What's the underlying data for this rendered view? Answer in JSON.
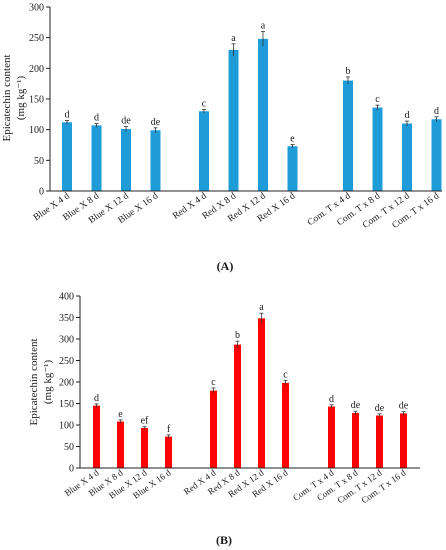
{
  "chart_data": [
    {
      "type": "bar",
      "panel_label": "(A)",
      "ylabel_line1": "Epicatechin content",
      "ylabel_line2": "(mg kg⁻¹)",
      "ylim": [
        0,
        300
      ],
      "yticks": [
        "0",
        "50",
        "100",
        "150",
        "200",
        "250",
        "300"
      ],
      "bar_color": "#1f9bd8",
      "grid": false,
      "groups": [
        {
          "categories": [
            "Blue X 4 d",
            "Blue X 8 d",
            "Blue X 12 d",
            "Blue X 16 d"
          ],
          "values": [
            112,
            107,
            101,
            99
          ],
          "errors": [
            3,
            3,
            4,
            4
          ],
          "letters": [
            "d",
            "d",
            "de",
            "de"
          ]
        },
        {
          "categories": [
            "Red X 4 d",
            "Red X 8 d",
            "Red X 12 d",
            "Red X  16 d"
          ],
          "values": [
            130,
            230,
            248,
            73
          ],
          "errors": [
            3,
            10,
            12,
            3
          ],
          "letters": [
            "c",
            "a",
            "a",
            "e"
          ]
        },
        {
          "categories": [
            "Com. T x 4 d",
            "Com. T x 8 d",
            "Com. T x 12 d",
            "Com. T x 16 d"
          ],
          "values": [
            180,
            136,
            110,
            117
          ],
          "errors": [
            6,
            4,
            4,
            4
          ],
          "letters": [
            "b",
            "c",
            "d",
            "d"
          ]
        }
      ]
    },
    {
      "type": "bar",
      "panel_label": "(B)",
      "ylabel_line1": "Epicatechin content",
      "ylabel_line2": "(mg kg⁻¹)",
      "ylim": [
        0,
        400
      ],
      "yticks": [
        "0",
        "50",
        "100",
        "150",
        "200",
        "250",
        "300",
        "350",
        "400"
      ],
      "bar_color": "#ff0000",
      "grid": false,
      "groups": [
        {
          "categories": [
            "Blue X 4 d",
            "Blue X 8 d",
            "Blue X 12 d",
            "Blue X 16 d"
          ],
          "values": [
            145,
            108,
            93,
            73
          ],
          "errors": [
            4,
            4,
            3,
            4
          ],
          "letters": [
            "d",
            "e",
            "ef",
            "f"
          ]
        },
        {
          "categories": [
            "Red X 4 d",
            "Red X 8 d",
            "Red X 12 d",
            "Red X  16 d"
          ],
          "values": [
            180,
            287,
            348,
            198
          ],
          "errors": [
            6,
            8,
            12,
            6
          ],
          "letters": [
            "c",
            "b",
            "a",
            "c"
          ]
        },
        {
          "categories": [
            "Com. T x 4 d",
            "Com. T x 8 d",
            "Com. T x 12 d",
            "Com. T x 16 d"
          ],
          "values": [
            143,
            128,
            122,
            127
          ],
          "errors": [
            4,
            4,
            4,
            4
          ],
          "letters": [
            "d",
            "de",
            "de",
            "de"
          ]
        }
      ]
    }
  ]
}
